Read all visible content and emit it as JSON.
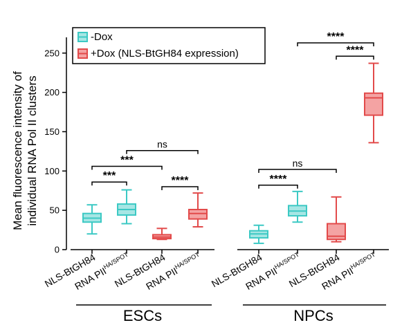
{
  "chart_data": {
    "type": "box",
    "ylabel_line1": "Mean fluorescence intensity of",
    "ylabel_line2": "individual RNA Pol II clusters",
    "ylim": [
      0,
      270
    ],
    "yticks": [
      0,
      50,
      100,
      150,
      200,
      250
    ],
    "legend": {
      "placement": "top-left",
      "entries": [
        {
          "label": "-Dox",
          "color": "#3cc9c4",
          "fill": "#a6e6e4"
        },
        {
          "label": "+Dox (NLS-BtGH84 expression)",
          "color": "#e24a4a",
          "fill": "#f4a3a3"
        }
      ]
    },
    "groups": [
      {
        "name": "ESCs",
        "boxes": [
          {
            "category": "NLS-BtGH84",
            "base": "RNA PII",
            "sup": "",
            "series": "-Dox",
            "whisker_min": 20,
            "q1": 35,
            "median": 40,
            "q3": 46,
            "whisker_max": 57
          },
          {
            "category": "RNA PII HA/SPOT",
            "base": "RNA PII",
            "sup": "HA/SPOT",
            "series": "-Dox",
            "whisker_min": 33,
            "q1": 44,
            "median": 51,
            "q3": 58,
            "whisker_max": 76
          },
          {
            "category": "NLS-BtGH84",
            "base": "RNA PII",
            "sup": "",
            "series": "+Dox",
            "whisker_min": 13,
            "q1": 14,
            "median": 16,
            "q3": 19,
            "whisker_max": 27
          },
          {
            "category": "RNA PII HA/SPOT",
            "base": "RNA PII",
            "sup": "HA/SPOT",
            "series": "+Dox",
            "whisker_min": 29,
            "q1": 39,
            "median": 46,
            "q3": 51,
            "whisker_max": 72
          }
        ],
        "significance": [
          {
            "from": 0,
            "to": 1,
            "label": "***",
            "y": 86
          },
          {
            "from": 0,
            "to": 2,
            "label": "***",
            "y": 106
          },
          {
            "from": 1,
            "to": 3,
            "label": "ns",
            "y": 126
          },
          {
            "from": 2,
            "to": 3,
            "label": "****",
            "y": 80
          }
        ]
      },
      {
        "name": "NPCs",
        "boxes": [
          {
            "category": "NLS-BtGH84",
            "base": "RNA PII",
            "sup": "",
            "series": "-Dox",
            "whisker_min": 8,
            "q1": 15,
            "median": 20,
            "q3": 24,
            "whisker_max": 31
          },
          {
            "category": "RNA PII HA/SPOT",
            "base": "RNA PII",
            "sup": "HA/SPOT",
            "series": "-Dox",
            "whisker_min": 35,
            "q1": 43,
            "median": 49,
            "q3": 56,
            "whisker_max": 74
          },
          {
            "category": "NLS-BtGH84",
            "base": "RNA PII",
            "sup": "",
            "series": "+Dox",
            "whisker_min": 10,
            "q1": 13,
            "median": 17,
            "q3": 33,
            "whisker_max": 67
          },
          {
            "category": "RNA PII HA/SPOT",
            "base": "RNA PII",
            "sup": "HA/SPOT",
            "series": "+Dox",
            "whisker_min": 136,
            "q1": 171,
            "median": 193,
            "q3": 199,
            "whisker_max": 237
          }
        ],
        "significance": [
          {
            "from": 0,
            "to": 1,
            "label": "****",
            "y": 82
          },
          {
            "from": 0,
            "to": 2,
            "label": "ns",
            "y": 102
          },
          {
            "from": 1,
            "to": 3,
            "label": "****",
            "y": 263
          },
          {
            "from": 2,
            "to": 3,
            "label": "****",
            "y": 246
          }
        ]
      }
    ]
  }
}
